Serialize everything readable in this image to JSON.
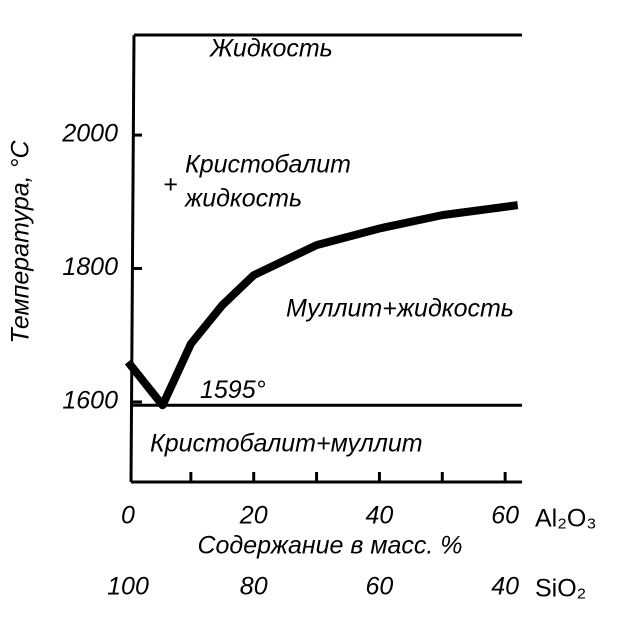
{
  "chart_data": {
    "type": "line",
    "y_label": "Температура, °С",
    "x_label": "Содержание в масс. %",
    "x_axis_component": "Al₂O₃",
    "x2_axis_component": "SiO₂",
    "xlim": [
      0,
      63
    ],
    "ylim": [
      1480,
      2150
    ],
    "xticks": [
      0,
      20,
      40,
      60
    ],
    "xminor": [
      10,
      30,
      50
    ],
    "x2ticks": [
      {
        "value": 0,
        "label": "100"
      },
      {
        "value": 20,
        "label": "80"
      },
      {
        "value": 40,
        "label": "60"
      },
      {
        "value": 60,
        "label": "40"
      }
    ],
    "yticks": [
      1600,
      1800,
      2000
    ],
    "series": [
      {
        "color": "#000000",
        "x": [
          0,
          5.5,
          10,
          15,
          20,
          30,
          40,
          50,
          62
        ],
        "values": [
          1660,
          1595,
          1687,
          1745,
          1790,
          1835,
          1860,
          1880,
          1895
        ]
      }
    ],
    "eutectic": {
      "value": 1595,
      "label": "1595°"
    },
    "annotations": [
      "Жидкость",
      "Кристобалит",
      "+",
      "жидкость",
      "Муллит+жидкость",
      "Кристобалит+муллит"
    ]
  }
}
